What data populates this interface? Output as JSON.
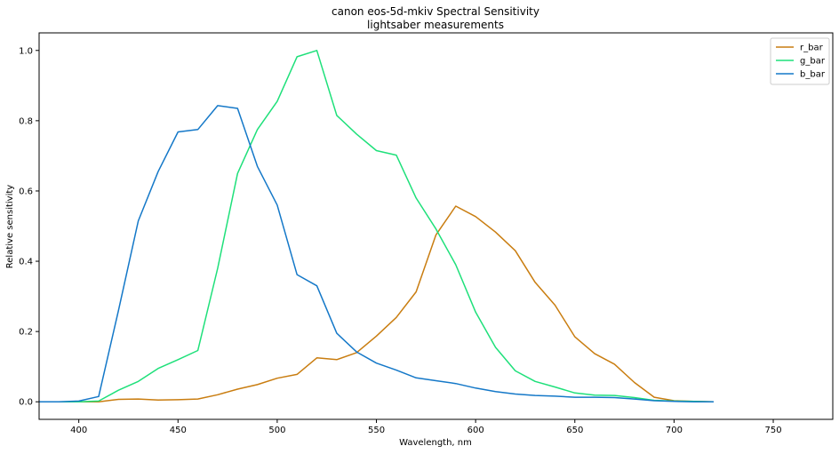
{
  "chart_data": {
    "type": "line",
    "title": "canon eos-5d-mkiv Spectral Sensitivity",
    "subtitle": "lightsaber measurements",
    "xlabel": "Wavelength, nm",
    "ylabel": "Relative sensitivity",
    "xlim": [
      380,
      780
    ],
    "ylim": [
      -0.05,
      1.05
    ],
    "xticks": [
      400,
      450,
      500,
      550,
      600,
      650,
      700,
      750
    ],
    "yticks": [
      0.0,
      0.2,
      0.4,
      0.6,
      0.8,
      1.0
    ],
    "grid": false,
    "legend_position": "top-right",
    "x": [
      380,
      390,
      400,
      410,
      420,
      430,
      440,
      450,
      460,
      470,
      480,
      490,
      500,
      510,
      520,
      530,
      540,
      550,
      560,
      570,
      580,
      590,
      600,
      610,
      620,
      630,
      640,
      650,
      660,
      670,
      680,
      690,
      700,
      710,
      720
    ],
    "series": [
      {
        "name": "r_bar",
        "color": "#c97d10",
        "values": [
          0.0,
          0.0,
          0.0,
          0.0,
          0.007,
          0.008,
          0.005,
          0.006,
          0.008,
          0.02,
          0.036,
          0.049,
          0.067,
          0.078,
          0.125,
          0.12,
          0.14,
          0.187,
          0.24,
          0.313,
          0.475,
          0.557,
          0.527,
          0.483,
          0.43,
          0.34,
          0.275,
          0.185,
          0.137,
          0.107,
          0.055,
          0.013,
          0.003,
          0.001,
          0.0
        ]
      },
      {
        "name": "g_bar",
        "color": "#1ee07a",
        "values": [
          0.0,
          0.0,
          0.0,
          0.002,
          0.033,
          0.058,
          0.095,
          0.12,
          0.146,
          0.38,
          0.65,
          0.775,
          0.855,
          0.982,
          1.0,
          0.815,
          0.762,
          0.715,
          0.702,
          0.58,
          0.492,
          0.39,
          0.255,
          0.155,
          0.088,
          0.058,
          0.042,
          0.025,
          0.019,
          0.018,
          0.012,
          0.004,
          0.002,
          0.001,
          0.0
        ]
      },
      {
        "name": "b_bar",
        "color": "#1478c8",
        "values": [
          0.0,
          0.0,
          0.002,
          0.015,
          0.26,
          0.515,
          0.655,
          0.768,
          0.775,
          0.843,
          0.835,
          0.67,
          0.56,
          0.362,
          0.33,
          0.195,
          0.142,
          0.11,
          0.09,
          0.068,
          0.06,
          0.052,
          0.039,
          0.029,
          0.022,
          0.018,
          0.016,
          0.013,
          0.013,
          0.012,
          0.008,
          0.003,
          0.001,
          0.0,
          0.0
        ]
      }
    ]
  }
}
